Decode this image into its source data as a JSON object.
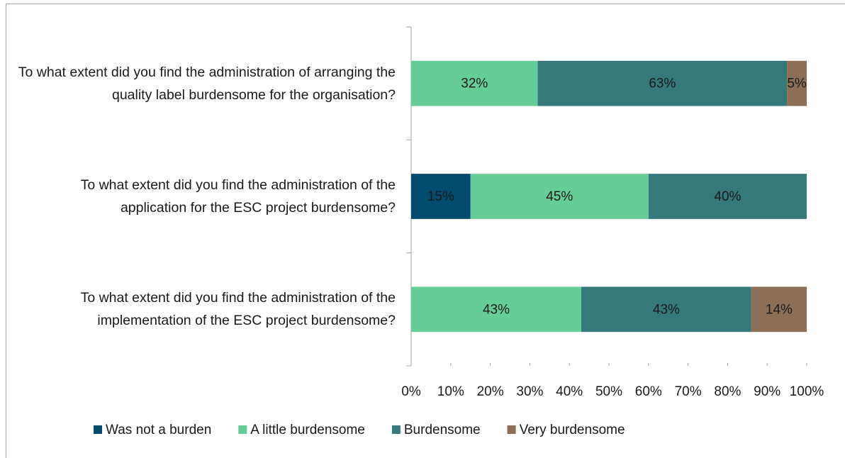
{
  "chart_data": {
    "type": "stacked_bar_horizontal",
    "categories": [
      "To what extent did you find the administration of arranging the quality label burdensome for the organisation?",
      "To what extent did you find the administration of the application for the ESC project burdensome?",
      "To what extent did you find the administration of the implementation of the ESC project burdensome?"
    ],
    "series": [
      {
        "name": "Was not a burden",
        "color": "#034a6f",
        "values": [
          null,
          15,
          null
        ],
        "value_labels": [
          null,
          "15%",
          null
        ]
      },
      {
        "name": "A little burdensome",
        "color": "#66cd99",
        "values": [
          32,
          45,
          43
        ],
        "value_labels": [
          "32%",
          "45%",
          "43%"
        ]
      },
      {
        "name": "Burdensome",
        "color": "#35797b",
        "values": [
          63,
          40,
          43
        ],
        "value_labels": [
          "63%",
          "40%",
          "43%"
        ]
      },
      {
        "name": "Very burdensome",
        "color": "#8c6f55",
        "values": [
          5,
          null,
          14
        ],
        "value_labels": [
          "5%",
          null,
          "14%"
        ]
      }
    ],
    "xlim": [
      0,
      100
    ],
    "xticks": [
      {
        "value": 0,
        "label": "0%"
      },
      {
        "value": 10,
        "label": "10%"
      },
      {
        "value": 20,
        "label": "20%"
      },
      {
        "value": 30,
        "label": "30%"
      },
      {
        "value": 40,
        "label": "40%"
      },
      {
        "value": 50,
        "label": "50%"
      },
      {
        "value": 60,
        "label": "60%"
      },
      {
        "value": 70,
        "label": "70%"
      },
      {
        "value": 80,
        "label": "80%"
      },
      {
        "value": 90,
        "label": "90%"
      },
      {
        "value": 100,
        "label": "100%"
      }
    ],
    "legend": "bottom"
  }
}
